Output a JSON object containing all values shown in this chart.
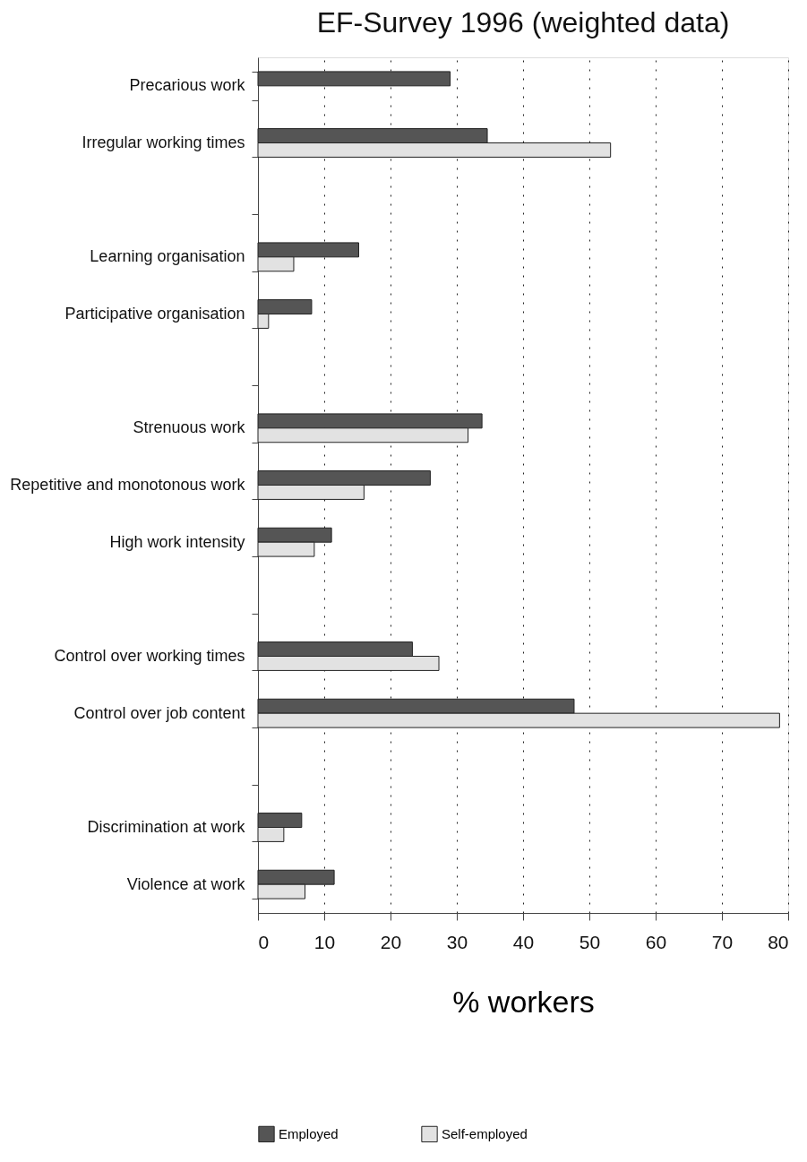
{
  "chart_data": {
    "type": "bar",
    "orientation": "horizontal",
    "title": "EF-Survey 1996 (weighted data)",
    "xlabel": "% workers",
    "categories": [
      "Precarious work",
      "Irregular working times",
      null,
      "Learning organisation",
      "Participative organisation",
      null,
      "Strenuous work",
      "Repetitive and monotonous work",
      "High work intensity",
      null,
      "Control over working times",
      "Control over job content",
      null,
      "Discrimination at work",
      "Violence at work"
    ],
    "series": [
      {
        "name": "Employed",
        "color": "#555555",
        "values": [
          29.0,
          34.6,
          null,
          15.2,
          8.1,
          null,
          33.8,
          26.0,
          11.1,
          null,
          23.3,
          47.7,
          null,
          6.6,
          11.5
        ]
      },
      {
        "name": "Self-employed",
        "color": "#e2e2e2",
        "values": [
          null,
          53.2,
          null,
          5.4,
          1.6,
          null,
          31.7,
          16.0,
          8.5,
          null,
          27.3,
          78.7,
          null,
          3.9,
          7.1
        ]
      }
    ],
    "xlim": [
      0,
      80
    ],
    "xticks": [
      0,
      10,
      20,
      30,
      40,
      50,
      60,
      70,
      80
    ],
    "grid": "x",
    "legend": "bottom"
  }
}
